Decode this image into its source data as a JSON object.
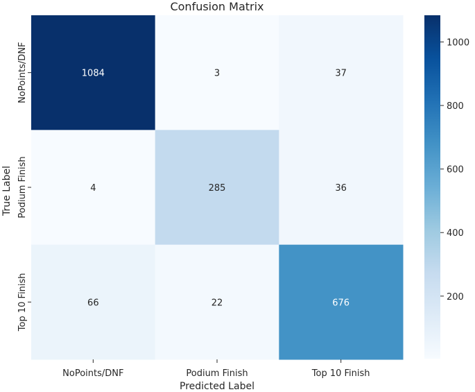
{
  "chart_data": {
    "type": "heatmap",
    "title": "Confusion Matrix",
    "xlabel": "Predicted Label",
    "ylabel": "True Label",
    "x_categories": [
      "NoPoints/DNF",
      "Podium Finish",
      "Top 10 Finish"
    ],
    "y_categories": [
      "NoPoints/DNF",
      "Podium Finish",
      "Top 10 Finish"
    ],
    "matrix": [
      [
        1084,
        3,
        37
      ],
      [
        4,
        285,
        36
      ],
      [
        66,
        22,
        676
      ]
    ],
    "colormap": "Blues",
    "vmin": 3,
    "vmax": 1084,
    "colorbar_ticks": [
      200,
      400,
      600,
      800,
      1000
    ]
  },
  "colors": {
    "text_dark": "#262626",
    "text_light": "#ffffff"
  }
}
